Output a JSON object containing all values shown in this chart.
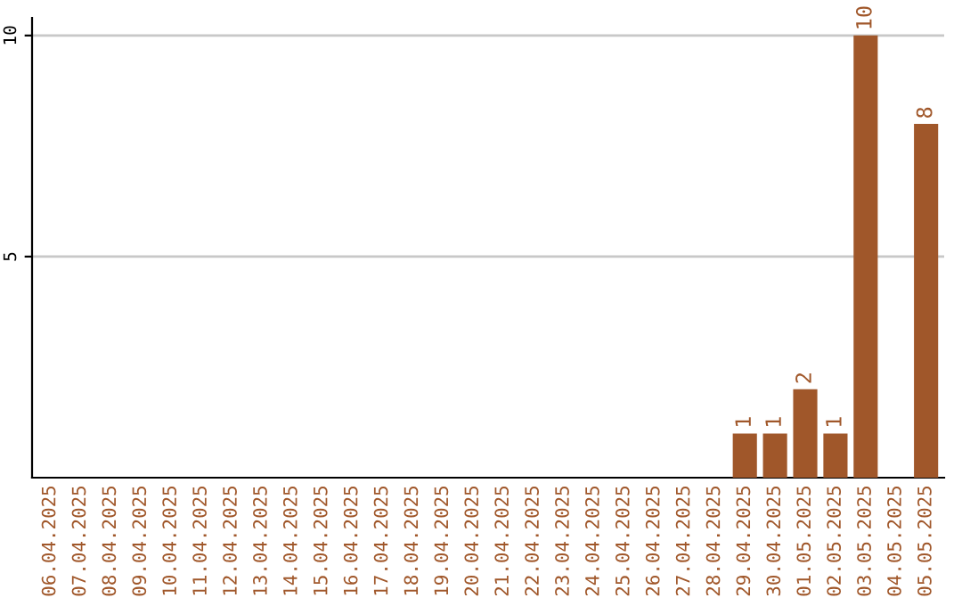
{
  "chart_data": {
    "type": "bar",
    "categories": [
      "06.04.2025",
      "07.04.2025",
      "08.04.2025",
      "09.04.2025",
      "10.04.2025",
      "11.04.2025",
      "12.04.2025",
      "13.04.2025",
      "14.04.2025",
      "15.04.2025",
      "16.04.2025",
      "17.04.2025",
      "18.04.2025",
      "19.04.2025",
      "20.04.2025",
      "21.04.2025",
      "22.04.2025",
      "23.04.2025",
      "24.04.2025",
      "25.04.2025",
      "26.04.2025",
      "27.04.2025",
      "28.04.2025",
      "29.04.2025",
      "30.04.2025",
      "01.05.2025",
      "02.05.2025",
      "03.05.2025",
      "04.05.2025",
      "05.05.2025"
    ],
    "values": [
      0,
      0,
      0,
      0,
      0,
      0,
      0,
      0,
      0,
      0,
      0,
      0,
      0,
      0,
      0,
      0,
      0,
      0,
      0,
      0,
      0,
      0,
      0,
      1,
      1,
      2,
      1,
      10,
      0,
      8
    ],
    "value_labels": [
      null,
      null,
      null,
      null,
      null,
      null,
      null,
      null,
      null,
      null,
      null,
      null,
      null,
      null,
      null,
      null,
      null,
      null,
      null,
      null,
      null,
      null,
      null,
      "1",
      "1",
      "2",
      "1",
      "10",
      null,
      "8"
    ],
    "color": "#a0572a",
    "ylim": [
      0,
      10.4
    ],
    "yticks": [
      5,
      10
    ],
    "grid": "y"
  }
}
